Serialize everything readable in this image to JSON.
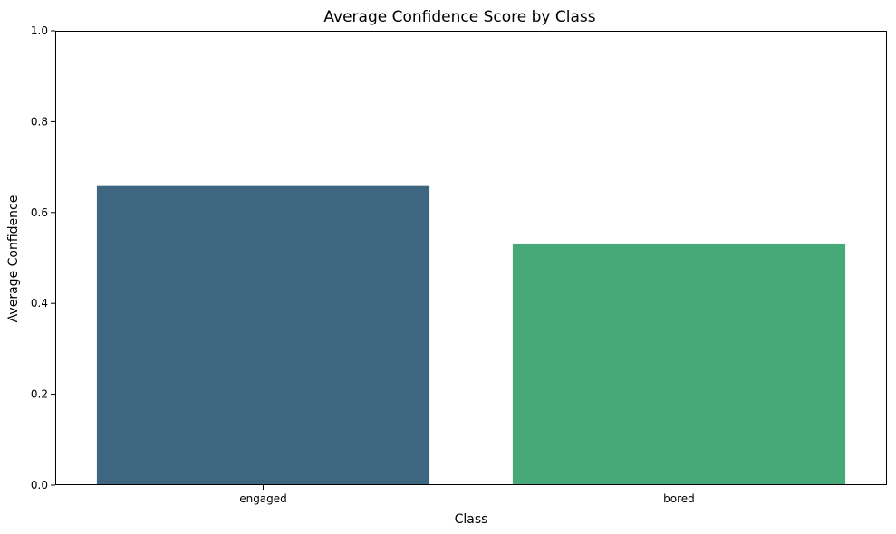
{
  "chart_data": {
    "type": "bar",
    "title": "Average Confidence Score by Class",
    "xlabel": "Class",
    "ylabel": "Average Confidence",
    "categories": [
      "engaged",
      "bored"
    ],
    "values": [
      0.66,
      0.53
    ],
    "colors": [
      "#3e6680",
      "#47a878"
    ],
    "ylim": [
      0,
      1.0
    ],
    "yticks": [
      "0.0",
      "0.2",
      "0.4",
      "0.6",
      "0.8",
      "1.0"
    ],
    "grid": false,
    "legend": "none"
  }
}
